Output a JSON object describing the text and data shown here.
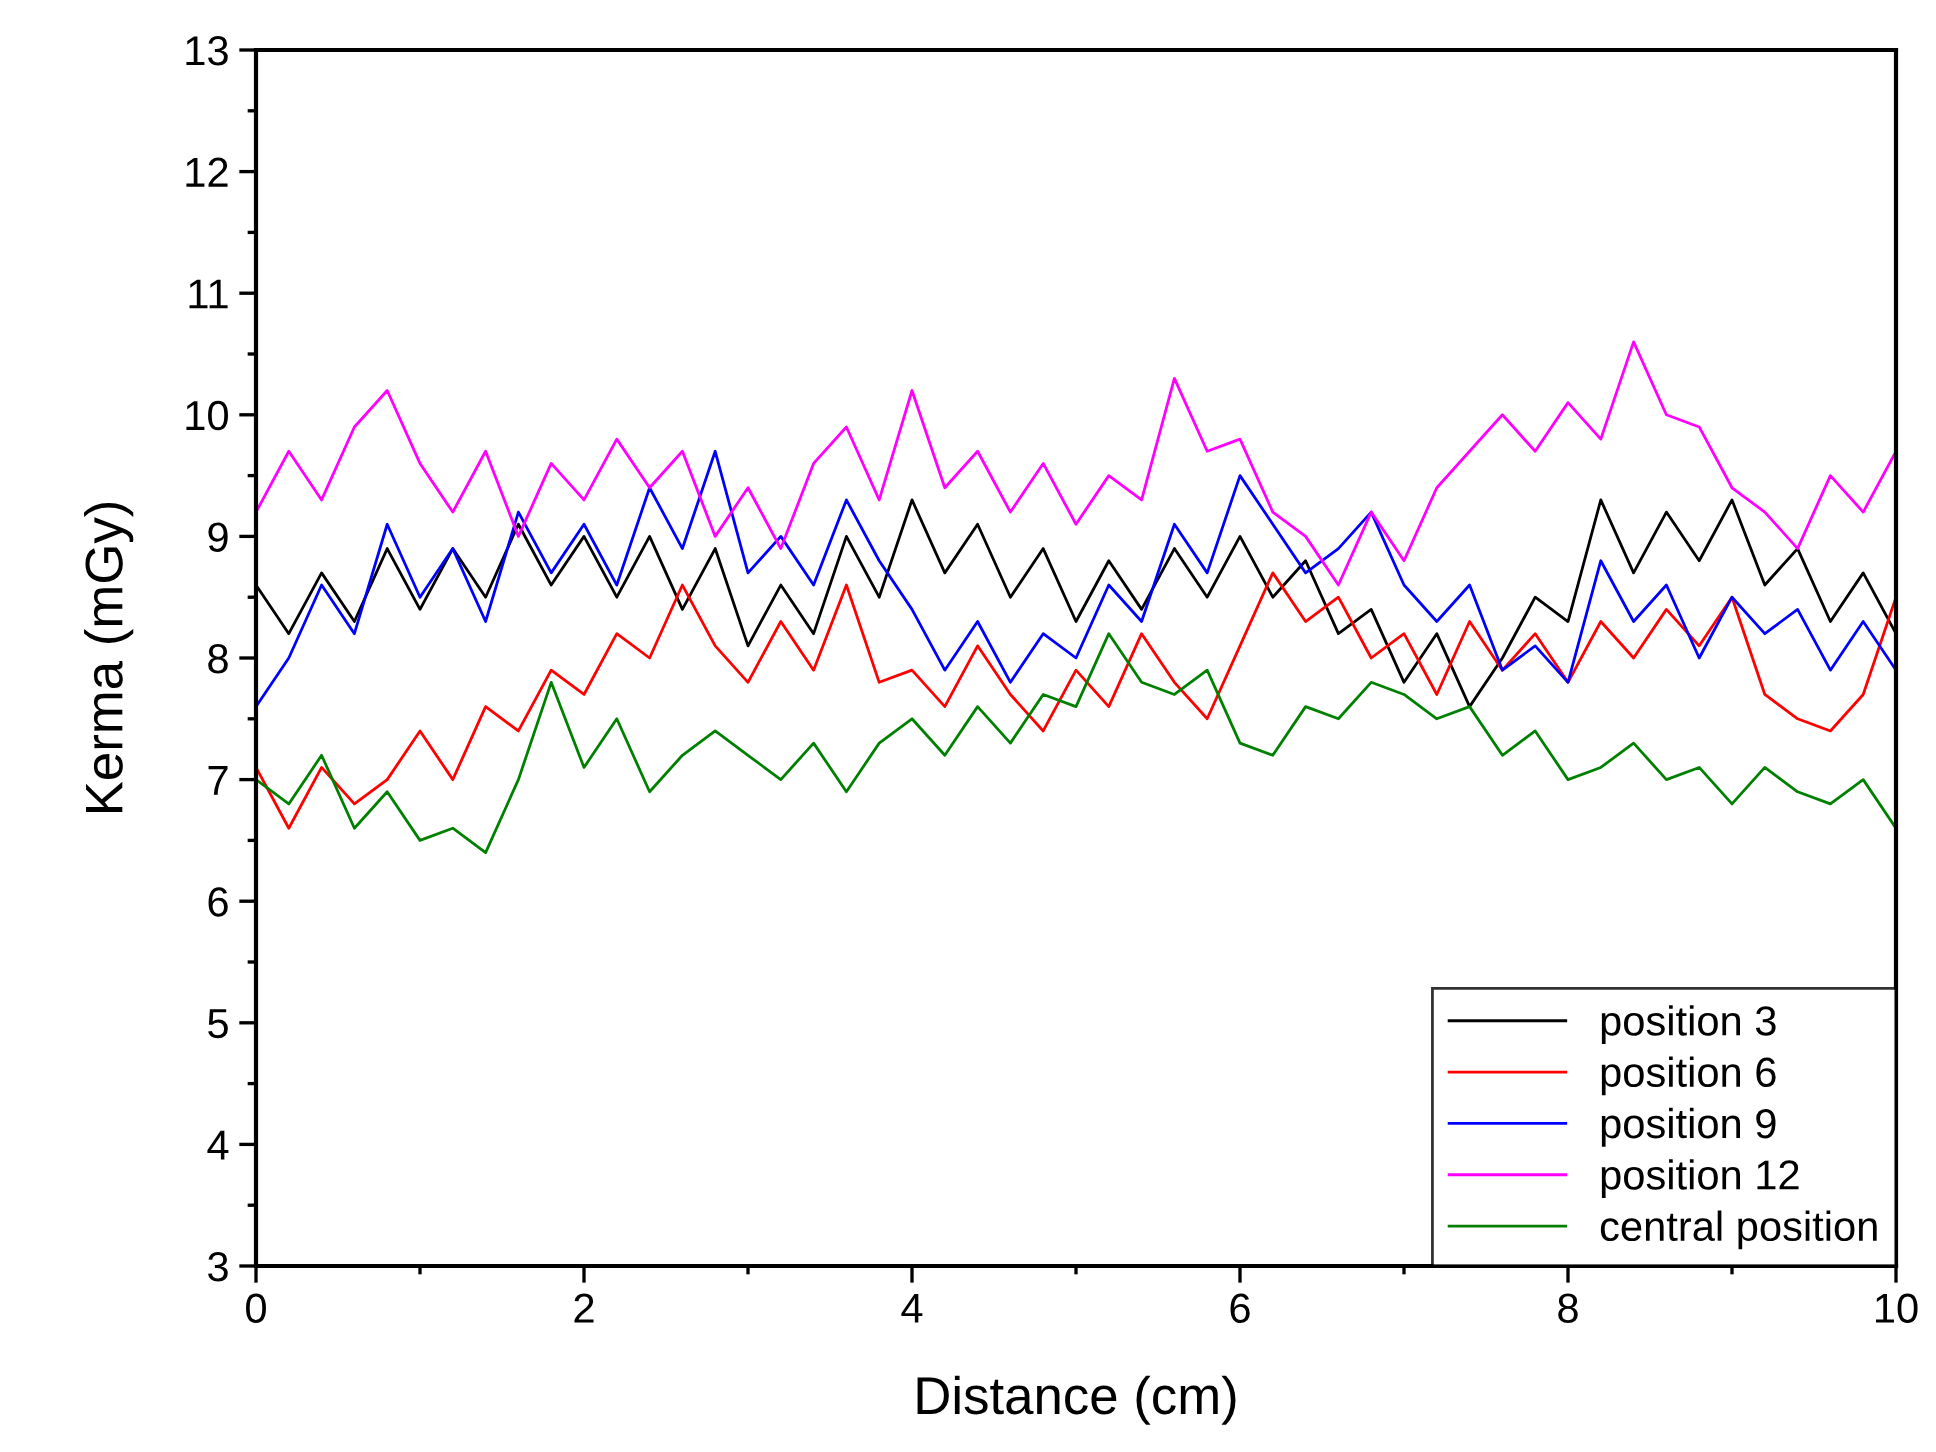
{
  "chart_data": {
    "type": "line",
    "xlabel": "Distance (cm)",
    "ylabel": "Kerma (mGy)",
    "x": [
      0,
      0.2,
      0.4,
      0.6,
      0.8,
      1.0,
      1.2,
      1.4,
      1.6,
      1.8,
      2.0,
      2.2,
      2.4,
      2.6,
      2.8,
      3.0,
      3.2,
      3.4,
      3.6,
      3.8,
      4.0,
      4.2,
      4.4,
      4.6,
      4.8,
      5.0,
      5.2,
      5.4,
      5.6,
      5.8,
      6.0,
      6.2,
      6.4,
      6.6,
      6.8,
      7.0,
      7.2,
      7.4,
      7.6,
      7.8,
      8.0,
      8.2,
      8.4,
      8.6,
      8.8,
      9.0,
      9.2,
      9.4,
      9.6,
      9.8,
      10
    ],
    "xlim": [
      0,
      10
    ],
    "xticks": [
      0,
      2,
      4,
      6,
      8,
      10
    ],
    "ylim": [
      3,
      13
    ],
    "yticks": [
      3,
      4,
      5,
      6,
      7,
      8,
      9,
      10,
      11,
      12,
      13
    ],
    "grid": false,
    "legend": "bottom right",
    "marker": "none",
    "line_style": "solid",
    "series": [
      {
        "name": "position 3",
        "color": "#000000",
        "values": [
          8.6,
          8.2,
          8.7,
          8.3,
          8.9,
          8.4,
          8.9,
          8.5,
          9.1,
          8.6,
          9.0,
          8.5,
          9.0,
          8.4,
          8.9,
          8.1,
          8.6,
          8.2,
          9.0,
          8.5,
          9.3,
          8.7,
          9.1,
          8.5,
          8.9,
          8.3,
          8.8,
          8.4,
          8.9,
          8.5,
          9.0,
          8.5,
          8.8,
          8.2,
          8.4,
          7.8,
          8.2,
          7.6,
          8.0,
          8.5,
          8.3,
          9.3,
          8.7,
          9.2,
          8.8,
          9.3,
          8.6,
          8.9,
          8.3,
          8.7,
          8.2
        ]
      },
      {
        "name": "position 6",
        "color": "#ff0000",
        "values": [
          7.1,
          6.6,
          7.1,
          6.8,
          7.0,
          7.4,
          7.0,
          7.6,
          7.4,
          7.9,
          7.7,
          8.2,
          8.0,
          8.6,
          8.1,
          7.8,
          8.3,
          7.9,
          8.6,
          7.8,
          7.9,
          7.6,
          8.1,
          7.7,
          7.4,
          7.9,
          7.6,
          8.2,
          7.8,
          7.5,
          8.1,
          8.7,
          8.3,
          8.5,
          8.0,
          8.2,
          7.7,
          8.3,
          7.9,
          8.2,
          7.8,
          8.3,
          8.0,
          8.4,
          8.1,
          8.5,
          7.7,
          7.5,
          7.4,
          7.7,
          8.5
        ]
      },
      {
        "name": "position 9",
        "color": "#0000ff",
        "values": [
          7.6,
          8.0,
          8.6,
          8.2,
          9.1,
          8.5,
          8.9,
          8.3,
          9.2,
          8.7,
          9.1,
          8.6,
          9.4,
          8.9,
          9.7,
          8.7,
          9.0,
          8.6,
          9.3,
          8.8,
          8.4,
          7.9,
          8.3,
          7.8,
          8.2,
          8.0,
          8.6,
          8.3,
          9.1,
          8.7,
          9.5,
          9.1,
          8.7,
          8.9,
          9.2,
          8.6,
          8.3,
          8.6,
          7.9,
          8.1,
          7.8,
          8.8,
          8.3,
          8.6,
          8.0,
          8.5,
          8.2,
          8.4,
          7.9,
          8.3,
          7.9
        ]
      },
      {
        "name": "position 12",
        "color": "#ff00ff",
        "values": [
          9.2,
          9.7,
          9.3,
          9.9,
          10.2,
          9.6,
          9.2,
          9.7,
          9.0,
          9.6,
          9.3,
          9.8,
          9.4,
          9.7,
          9.0,
          9.4,
          8.9,
          9.6,
          9.9,
          9.3,
          10.2,
          9.4,
          9.7,
          9.2,
          9.6,
          9.1,
          9.5,
          9.3,
          10.3,
          9.7,
          9.8,
          9.2,
          9.0,
          8.6,
          9.2,
          8.8,
          9.4,
          9.7,
          10.0,
          9.7,
          10.1,
          9.8,
          10.6,
          10.0,
          9.9,
          9.4,
          9.2,
          8.9,
          9.5,
          9.2,
          9.7
        ]
      },
      {
        "name": "central position",
        "color": "#008000",
        "values": [
          7.0,
          6.8,
          7.2,
          6.6,
          6.9,
          6.5,
          6.6,
          6.4,
          7.0,
          7.8,
          7.1,
          7.5,
          6.9,
          7.2,
          7.4,
          7.2,
          7.0,
          7.3,
          6.9,
          7.3,
          7.5,
          7.2,
          7.6,
          7.3,
          7.7,
          7.6,
          8.2,
          7.8,
          7.7,
          7.9,
          7.3,
          7.2,
          7.6,
          7.5,
          7.8,
          7.7,
          7.5,
          7.6,
          7.2,
          7.4,
          7.0,
          7.1,
          7.3,
          7.0,
          7.1,
          6.8,
          7.1,
          6.9,
          6.8,
          7.0,
          6.6
        ]
      }
    ]
  }
}
